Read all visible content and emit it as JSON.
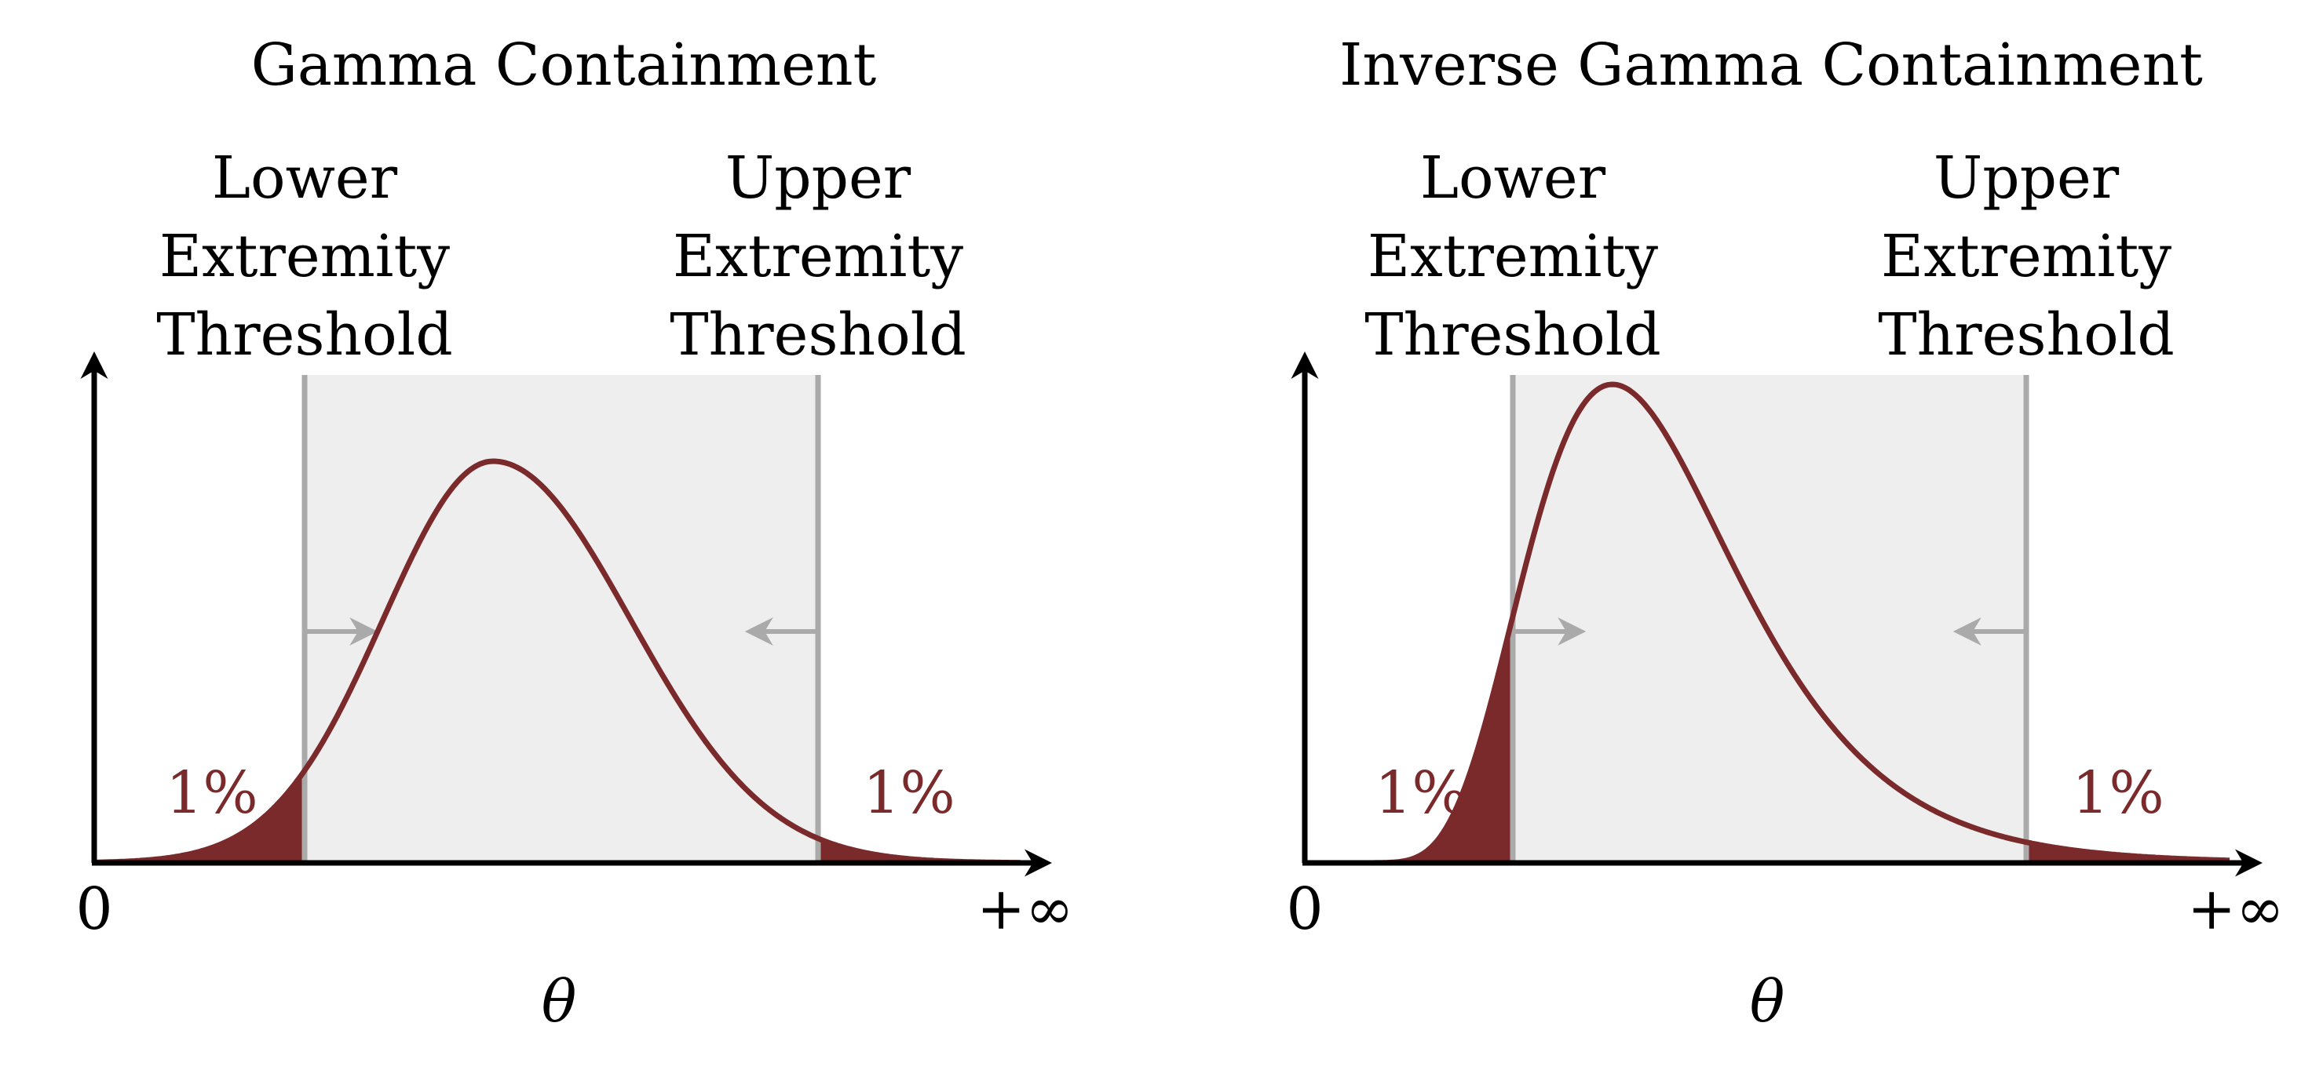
{
  "colors": {
    "curve": "#7b2a2c",
    "tail_fill": "#7b2a2c",
    "region_fill": "#eeeeee",
    "threshold": "#aaaaaa",
    "axis": "#000000",
    "label": "#000000"
  },
  "panels": [
    {
      "title": "Gamma Containment",
      "lower_threshold_label": [
        "Lower",
        "Extremity",
        "Threshold"
      ],
      "upper_threshold_label": [
        "Upper",
        "Extremity",
        "Threshold"
      ],
      "left_tail_label": "1%",
      "right_tail_label": "1%",
      "x_origin_label": "0",
      "x_end_label": "+∞",
      "x_axis_label": "θ",
      "distribution": "gamma"
    },
    {
      "title": "Inverse Gamma Containment",
      "lower_threshold_label": [
        "Lower",
        "Extremity",
        "Threshold"
      ],
      "upper_threshold_label": [
        "Upper",
        "Extremity",
        "Threshold"
      ],
      "left_tail_label": "1%",
      "right_tail_label": "1%",
      "x_origin_label": "0",
      "x_end_label": "+∞",
      "x_axis_label": "θ",
      "distribution": "inverse-gamma"
    }
  ]
}
